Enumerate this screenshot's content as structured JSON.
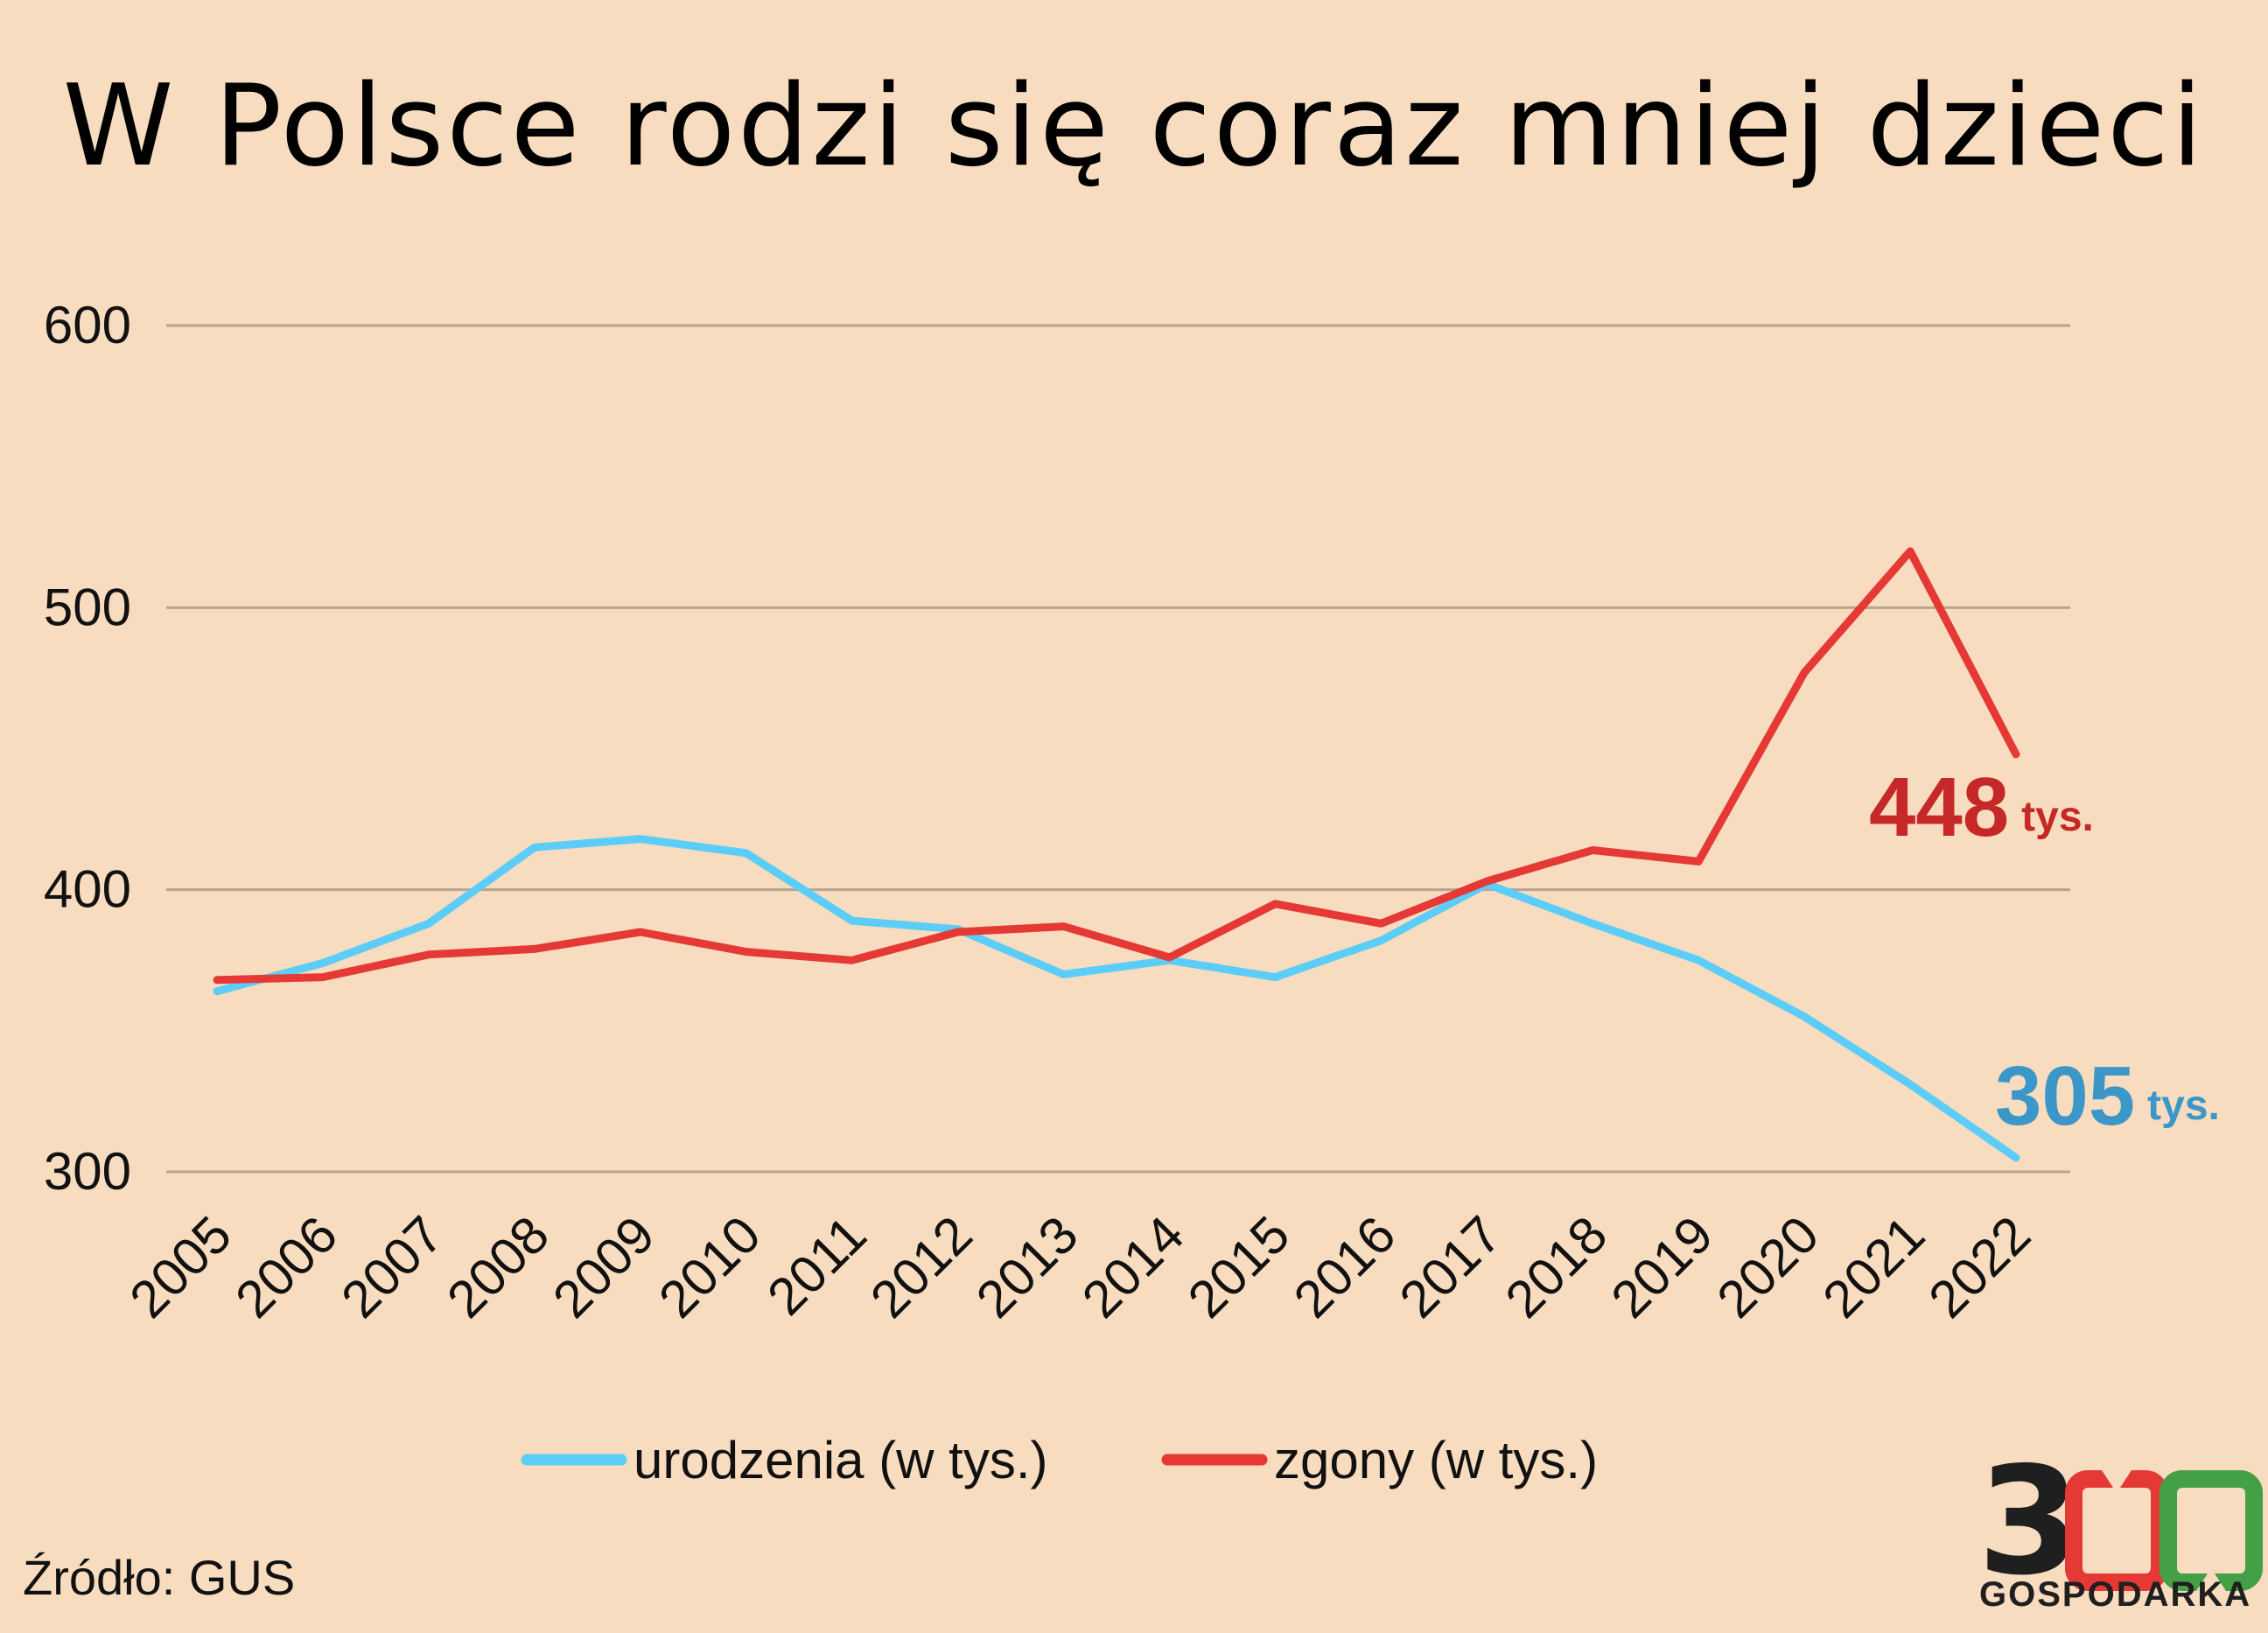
{
  "title": "W Polsce rodzi się coraz mniej dzieci",
  "source": "Źródło: GUS",
  "logo": {
    "number": "3",
    "brand": "GOSPODARKA"
  },
  "chart_data": {
    "type": "line",
    "title": "W Polsce rodzi się coraz mniej dzieci",
    "x": [
      "2005",
      "2006",
      "2007",
      "2008",
      "2009",
      "2010",
      "2011",
      "2012",
      "2013",
      "2014",
      "2015",
      "2016",
      "2017",
      "2018",
      "2019",
      "2020",
      "2021",
      "2022"
    ],
    "ylim": [
      300,
      600
    ],
    "yticks": [
      "300",
      "400",
      "500",
      "600"
    ],
    "grid": true,
    "legend_position": "bottom",
    "series": [
      {
        "name": "urodzenia (w tys.)",
        "color": "#5bcdf8",
        "values": [
          364,
          374,
          388,
          415,
          418,
          413,
          389,
          386,
          370,
          375,
          369,
          382,
          402,
          388,
          375,
          355,
          331,
          305
        ]
      },
      {
        "name": "zgony (w tys.)",
        "color": "#e53935",
        "values": [
          368,
          369,
          377,
          379,
          385,
          378,
          375,
          385,
          387,
          376,
          395,
          388,
          403,
          414,
          410,
          477,
          520,
          448
        ]
      }
    ],
    "annotations": [
      {
        "series": 1,
        "value": "448",
        "unit": "tys.",
        "color": "#c62828"
      },
      {
        "series": 0,
        "value": "305",
        "unit": "tys.",
        "color": "#3a97c7"
      }
    ]
  }
}
